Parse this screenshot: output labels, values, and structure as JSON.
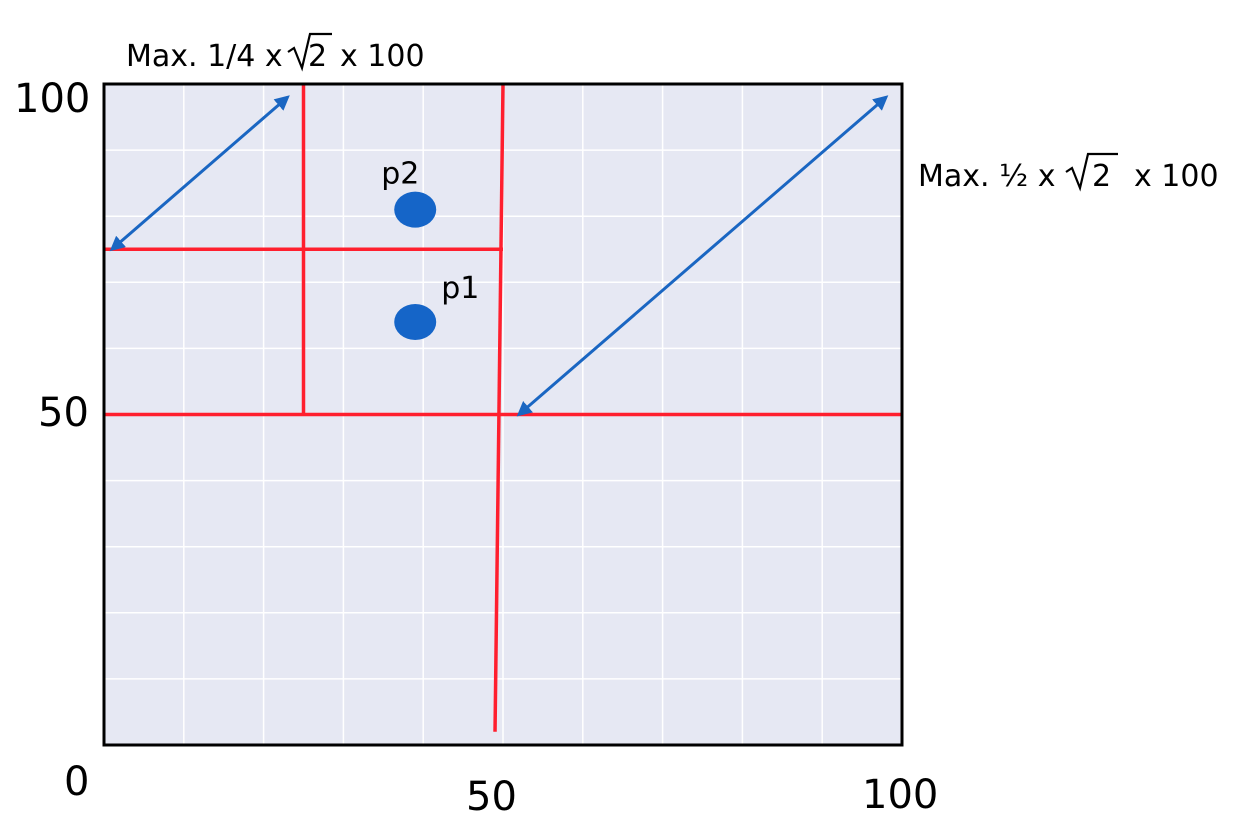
{
  "x_axis": {
    "min": 0,
    "max": 100,
    "tick_labels": [
      "0",
      "50",
      "100"
    ]
  },
  "y_axis": {
    "min": 0,
    "max": 100,
    "tick_labels": [
      "50",
      "100"
    ]
  },
  "grid": true,
  "colors": {
    "plot_background": "#e6e8f3",
    "grid_line": "#ffffff",
    "frame": "#000000",
    "partition_line": "#ff1f2e",
    "arrow": "#1a66c2",
    "point": "#1565c8"
  },
  "annotations": {
    "quarter_prefix": "Max. 1/4 x",
    "half_prefix": "Max. ½ x",
    "sqrt_symbol": "√",
    "sqrt_radicand": "2",
    "suffix": "x 100"
  },
  "points": [
    {
      "label": "p1",
      "x": 39,
      "y": 64
    },
    {
      "label": "p2",
      "x": 39,
      "y": 81
    }
  ],
  "partition_lines": [
    {
      "from": [
        0,
        75
      ],
      "to": [
        50,
        75
      ]
    },
    {
      "from": [
        25,
        100
      ],
      "to": [
        25,
        50
      ]
    },
    {
      "from": [
        50,
        100
      ],
      "to": [
        49,
        2
      ]
    },
    {
      "from": [
        0,
        50
      ],
      "to": [
        100,
        50
      ]
    }
  ],
  "arrows": [
    {
      "from": [
        1,
        75
      ],
      "to": [
        23,
        98
      ]
    },
    {
      "from": [
        52,
        50
      ],
      "to": [
        98,
        98
      ]
    }
  ]
}
